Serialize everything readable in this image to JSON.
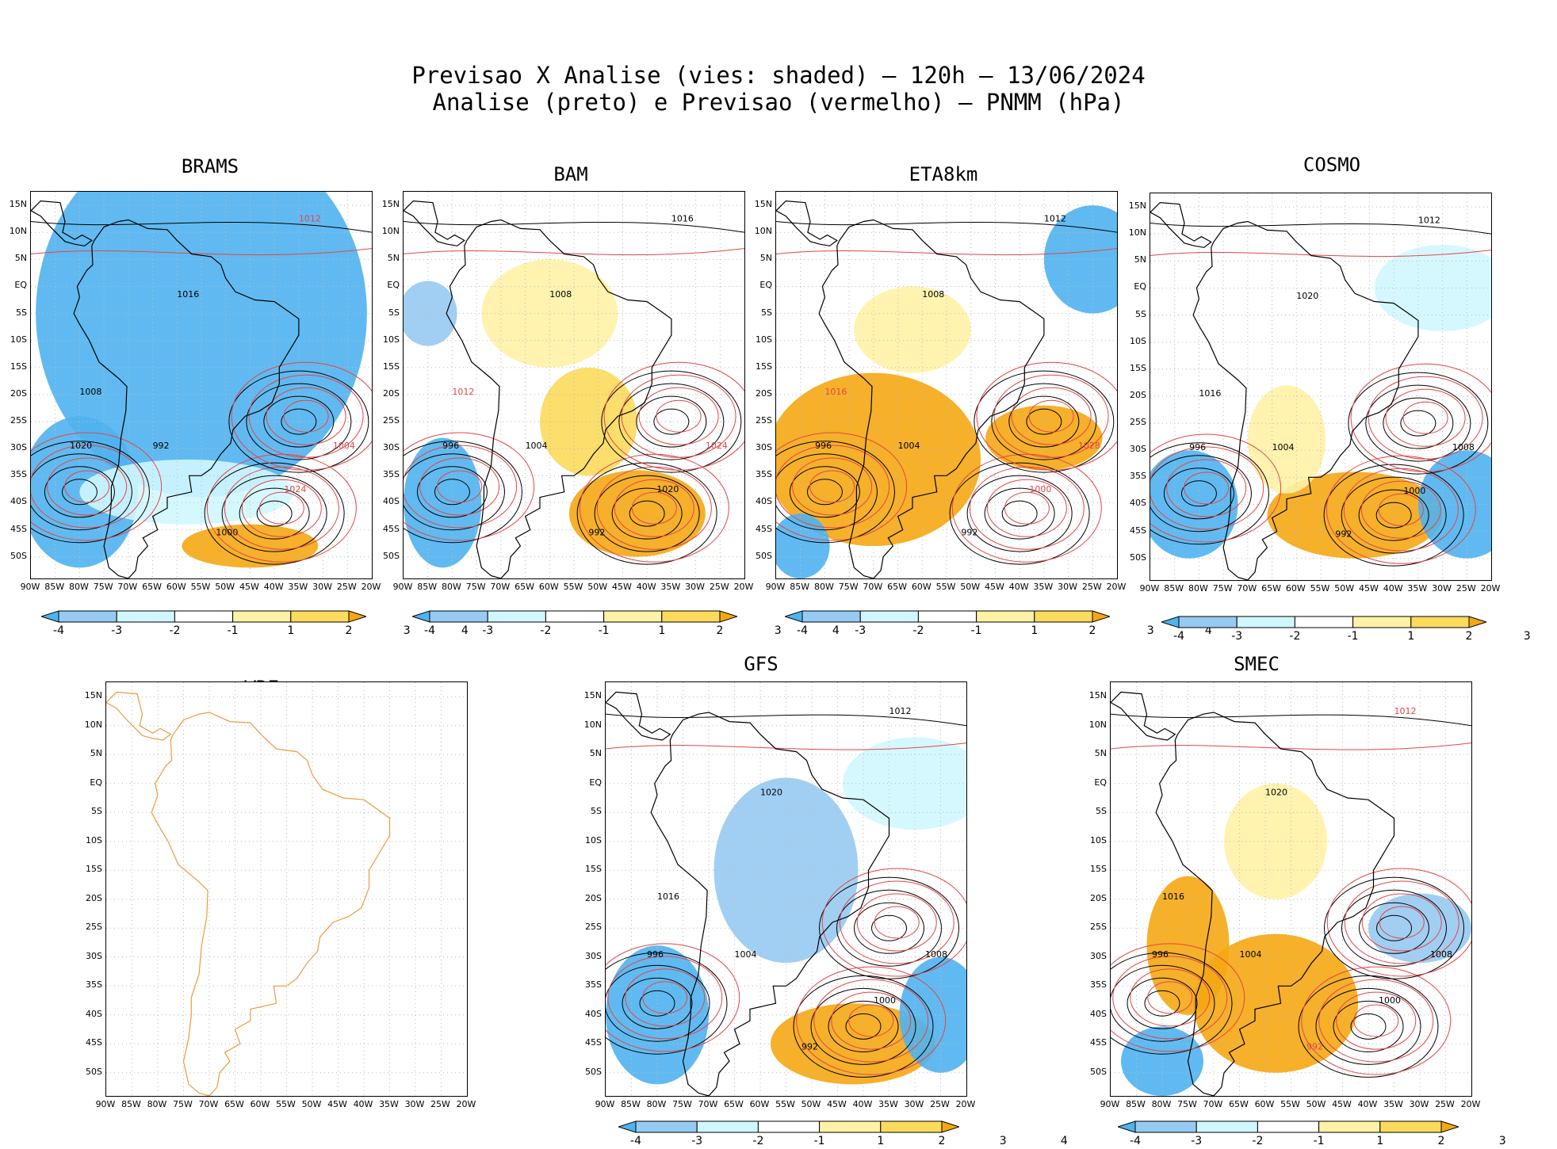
{
  "header": {
    "title_line1": "Previsao X Analise (vies: shaded) — 120h — 13/06/2024",
    "title_line2": "Analise (preto) e Previsao (vermelho) — PNMM (hPa)"
  },
  "lat_labels": [
    "15N",
    "10N",
    "5N",
    "EQ",
    "5S",
    "10S",
    "15S",
    "20S",
    "25S",
    "30S",
    "35S",
    "40S",
    "45S",
    "50S"
  ],
  "lon_labels": [
    "90W",
    "85W",
    "80W",
    "75W",
    "70W",
    "65W",
    "60W",
    "55W",
    "50W",
    "45W",
    "40W",
    "35W",
    "30W",
    "25W",
    "20W"
  ],
  "colorbar": {
    "labels": [
      "-4",
      "-3",
      "-2",
      "-1",
      "1",
      "2",
      "3",
      "4"
    ],
    "colors": [
      "#4fb3f0",
      "#97caf2",
      "#d0f7ff",
      "#ffffff",
      "#fff2a6",
      "#fbda5c",
      "#f5a712"
    ]
  },
  "colors": {
    "analysis_line": "#000000",
    "forecast_line": "#e64545",
    "coast_line": "#000000",
    "wrf_coast": "#f09a40"
  },
  "panels": [
    {
      "name": "BRAMS",
      "contour_labels": [
        {
          "v": "1008",
          "c": "k"
        },
        {
          "v": "1012",
          "c": "r"
        },
        {
          "v": "1016",
          "c": "k"
        },
        {
          "v": "1004",
          "c": "r"
        },
        {
          "v": "1020",
          "c": "k"
        },
        {
          "v": "992",
          "c": "k"
        },
        {
          "v": "1000",
          "c": "k"
        },
        {
          "v": "1024",
          "c": "r"
        }
      ]
    },
    {
      "name": "BAM",
      "contour_labels": [
        {
          "v": "1012",
          "c": "r"
        },
        {
          "v": "1016",
          "c": "k"
        },
        {
          "v": "1008",
          "c": "k"
        },
        {
          "v": "1024",
          "c": "r"
        },
        {
          "v": "996",
          "c": "k"
        },
        {
          "v": "1004",
          "c": "k"
        },
        {
          "v": "992",
          "c": "k"
        },
        {
          "v": "1020",
          "c": "k"
        }
      ]
    },
    {
      "name": "ETA8km",
      "contour_labels": [
        {
          "v": "1016",
          "c": "r"
        },
        {
          "v": "1012",
          "c": "k"
        },
        {
          "v": "1008",
          "c": "k"
        },
        {
          "v": "1028",
          "c": "r"
        },
        {
          "v": "996",
          "c": "k"
        },
        {
          "v": "1004",
          "c": "k"
        },
        {
          "v": "992",
          "c": "k"
        },
        {
          "v": "1000",
          "c": "r"
        }
      ]
    },
    {
      "name": "COSMO",
      "contour_labels": [
        {
          "v": "1016",
          "c": "k"
        },
        {
          "v": "1012",
          "c": "k"
        },
        {
          "v": "1020",
          "c": "k"
        },
        {
          "v": "1008",
          "c": "k"
        },
        {
          "v": "996",
          "c": "k"
        },
        {
          "v": "1004",
          "c": "k"
        },
        {
          "v": "992",
          "c": "k"
        },
        {
          "v": "1000",
          "c": "k"
        }
      ]
    },
    {
      "name": "WRF",
      "contour_labels": []
    },
    {
      "name": "GFS",
      "contour_labels": [
        {
          "v": "1016",
          "c": "k"
        },
        {
          "v": "1012",
          "c": "k"
        },
        {
          "v": "1020",
          "c": "k"
        },
        {
          "v": "1008",
          "c": "k"
        },
        {
          "v": "996",
          "c": "k"
        },
        {
          "v": "1004",
          "c": "k"
        },
        {
          "v": "992",
          "c": "k"
        },
        {
          "v": "1000",
          "c": "k"
        }
      ]
    },
    {
      "name": "SMEC",
      "contour_labels": [
        {
          "v": "1016",
          "c": "k"
        },
        {
          "v": "1012",
          "c": "r"
        },
        {
          "v": "1020",
          "c": "k"
        },
        {
          "v": "1008",
          "c": "k"
        },
        {
          "v": "996",
          "c": "k"
        },
        {
          "v": "1004",
          "c": "k"
        },
        {
          "v": "992",
          "c": "r"
        },
        {
          "v": "1000",
          "c": "k"
        }
      ]
    }
  ]
}
